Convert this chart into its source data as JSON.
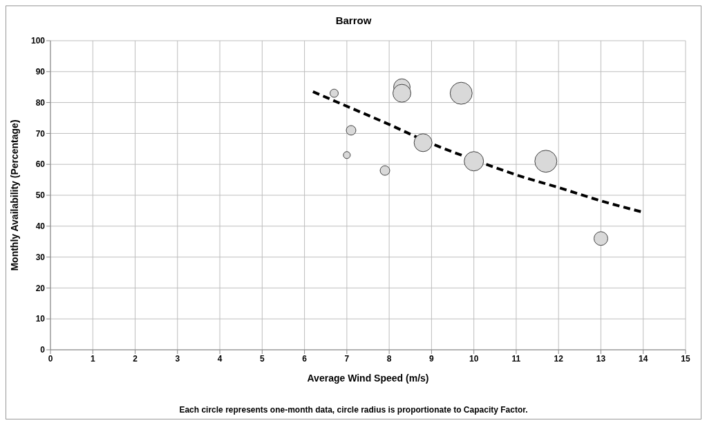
{
  "chart_data": {
    "type": "bubble",
    "title": "Barrow",
    "xlabel": "Average Wind Speed (m/s)",
    "ylabel": "Monthly Availability  (Percentage)",
    "annotations": [
      "Each circle represents one-month data, circle radius is proportionate to Capacity Factor."
    ],
    "xlim": [
      0,
      15
    ],
    "xticks": [
      0,
      1,
      2,
      3,
      4,
      5,
      6,
      7,
      8,
      9,
      10,
      11,
      12,
      13,
      14,
      15
    ],
    "ylim": [
      0,
      100
    ],
    "yticks": [
      0,
      10,
      20,
      30,
      40,
      50,
      60,
      70,
      80,
      90,
      100
    ],
    "grid": true,
    "legend": false,
    "series": [
      {
        "color": "#d9d9d9",
        "marker": "circle",
        "x": [
          6.7,
          7.1,
          7.0,
          7.9,
          8.3,
          8.3,
          8.8,
          9.7,
          10.0,
          11.7,
          13.0
        ],
        "values": [
          83,
          71,
          63,
          58,
          85,
          83,
          67,
          83,
          61,
          61,
          36
        ],
        "sizes": [
          0.14,
          0.19,
          0.1,
          0.19,
          0.56,
          0.66,
          0.66,
          1,
          0.77,
          1,
          0.39
        ]
      },
      {
        "type": "line",
        "color": "#000000",
        "line_style": "dashed",
        "marker": "none",
        "x": [
          6.2,
          7,
          8,
          9,
          10,
          11,
          12,
          13,
          14
        ],
        "values": [
          83.5,
          78.8,
          72.9,
          66.7,
          61.5,
          56.6,
          52.5,
          48.2,
          44.5
        ]
      }
    ]
  }
}
